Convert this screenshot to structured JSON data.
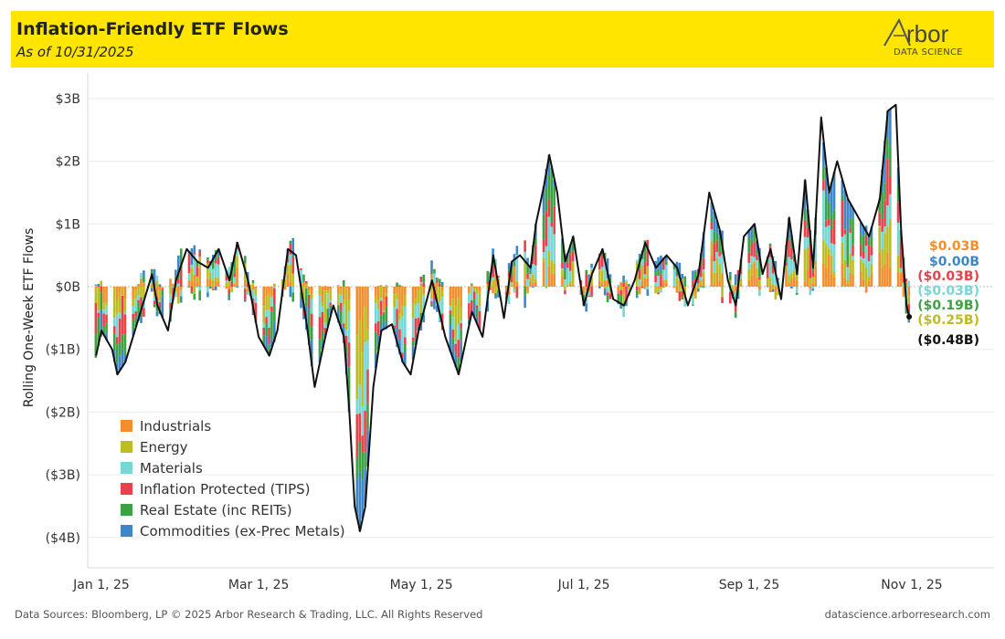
{
  "header": {
    "title": "Inflation-Friendly ETF Flows",
    "subtitle": "As of 10/31/2025",
    "background": "#ffe500"
  },
  "logo": {
    "wordmark": "rbor",
    "tagline": "DATA SCIENCE"
  },
  "footer": {
    "sources": "Data Sources: Bloomberg, LP © 2025 Arbor Research & Trading, LLC. All Rights Reserved",
    "website": "datascience.arborresearch.com"
  },
  "chart_data": {
    "type": "bar",
    "stacked": true,
    "ylabel": "Rolling One-Week ETF Flows",
    "ylim": [
      -4.4,
      3.3
    ],
    "yticks": [
      {
        "value": 3,
        "label": "$3B"
      },
      {
        "value": 2,
        "label": "$2B"
      },
      {
        "value": 1,
        "label": "$1B"
      },
      {
        "value": 0,
        "label": "$0B"
      },
      {
        "value": -1,
        "label": "($1B)"
      },
      {
        "value": -2,
        "label": "($2B)"
      },
      {
        "value": -3,
        "label": "($3B)"
      },
      {
        "value": -4,
        "label": "($4B)"
      }
    ],
    "x_start": "2024-12-30",
    "x_end": "2025-10-31",
    "x_axis_end": "2025-11-24",
    "xticks": [
      {
        "date": "2025-01-01",
        "label": "Jan 1, 25"
      },
      {
        "date": "2025-03-01",
        "label": "Mar 1, 25"
      },
      {
        "date": "2025-05-01",
        "label": "May 1, 25"
      },
      {
        "date": "2025-07-01",
        "label": "Jul 1, 25"
      },
      {
        "date": "2025-09-01",
        "label": "Sep 1, 25"
      },
      {
        "date": "2025-11-01",
        "label": "Nov 1, 25"
      }
    ],
    "legend_position": "bottom-left",
    "series": [
      {
        "name": "Industrials",
        "color": "#f28e2b"
      },
      {
        "name": "Energy",
        "color": "#bcbd22"
      },
      {
        "name": "Materials",
        "color": "#76d7d4"
      },
      {
        "name": "Inflation Protected (TIPS)",
        "color": "#e8414c"
      },
      {
        "name": "Real Estate (inc REITs)",
        "color": "#3ca143"
      },
      {
        "name": "Commodities (ex-Prec Metals)",
        "color": "#3f86c6"
      }
    ],
    "total_line": {
      "color": "#111111",
      "points": [
        [
          "2024-12-30",
          -1.1
        ],
        [
          "2025-01-01",
          -0.7
        ],
        [
          "2025-01-05",
          -1.0
        ],
        [
          "2025-01-07",
          -1.4
        ],
        [
          "2025-01-10",
          -1.2
        ],
        [
          "2025-01-15",
          -0.5
        ],
        [
          "2025-01-20",
          0.2
        ],
        [
          "2025-01-22",
          -0.3
        ],
        [
          "2025-01-26",
          -0.7
        ],
        [
          "2025-01-29",
          0.1
        ],
        [
          "2025-02-02",
          0.6
        ],
        [
          "2025-02-06",
          0.4
        ],
        [
          "2025-02-10",
          0.3
        ],
        [
          "2025-02-14",
          0.6
        ],
        [
          "2025-02-18",
          0.1
        ],
        [
          "2025-02-21",
          0.7
        ],
        [
          "2025-02-25",
          0.1
        ],
        [
          "2025-03-01",
          -0.8
        ],
        [
          "2025-03-05",
          -1.1
        ],
        [
          "2025-03-08",
          -0.7
        ],
        [
          "2025-03-12",
          0.6
        ],
        [
          "2025-03-15",
          0.5
        ],
        [
          "2025-03-19",
          -0.6
        ],
        [
          "2025-03-22",
          -1.6
        ],
        [
          "2025-03-26",
          -0.8
        ],
        [
          "2025-03-29",
          -0.3
        ],
        [
          "2025-04-02",
          -0.8
        ],
        [
          "2025-04-04",
          -2.0
        ],
        [
          "2025-04-06",
          -3.5
        ],
        [
          "2025-04-08",
          -3.9
        ],
        [
          "2025-04-10",
          -3.5
        ],
        [
          "2025-04-13",
          -1.6
        ],
        [
          "2025-04-16",
          -0.7
        ],
        [
          "2025-04-20",
          -0.6
        ],
        [
          "2025-04-24",
          -1.2
        ],
        [
          "2025-04-27",
          -1.4
        ],
        [
          "2025-04-30",
          -0.7
        ],
        [
          "2025-05-05",
          0.1
        ],
        [
          "2025-05-10",
          -0.8
        ],
        [
          "2025-05-15",
          -1.4
        ],
        [
          "2025-05-20",
          -0.4
        ],
        [
          "2025-05-24",
          -0.8
        ],
        [
          "2025-05-28",
          0.5
        ],
        [
          "2025-06-01",
          -0.5
        ],
        [
          "2025-06-04",
          0.4
        ],
        [
          "2025-06-07",
          0.5
        ],
        [
          "2025-06-11",
          0.3
        ],
        [
          "2025-06-13",
          1.0
        ],
        [
          "2025-06-16",
          1.6
        ],
        [
          "2025-06-18",
          2.1
        ],
        [
          "2025-06-21",
          1.5
        ],
        [
          "2025-06-24",
          0.4
        ],
        [
          "2025-06-27",
          0.8
        ],
        [
          "2025-07-01",
          -0.3
        ],
        [
          "2025-07-04",
          0.2
        ],
        [
          "2025-07-08",
          0.6
        ],
        [
          "2025-07-12",
          -0.2
        ],
        [
          "2025-07-16",
          -0.3
        ],
        [
          "2025-07-20",
          0.1
        ],
        [
          "2025-07-24",
          0.7
        ],
        [
          "2025-07-28",
          0.3
        ],
        [
          "2025-08-01",
          0.5
        ],
        [
          "2025-08-05",
          0.3
        ],
        [
          "2025-08-09",
          -0.3
        ],
        [
          "2025-08-13",
          0.2
        ],
        [
          "2025-08-17",
          1.5
        ],
        [
          "2025-08-21",
          0.9
        ],
        [
          "2025-08-24",
          0.1
        ],
        [
          "2025-08-27",
          -0.3
        ],
        [
          "2025-08-30",
          0.8
        ],
        [
          "2025-09-03",
          1.0
        ],
        [
          "2025-09-06",
          0.2
        ],
        [
          "2025-09-09",
          0.6
        ],
        [
          "2025-09-13",
          -0.2
        ],
        [
          "2025-09-16",
          1.1
        ],
        [
          "2025-09-19",
          0.2
        ],
        [
          "2025-09-22",
          1.7
        ],
        [
          "2025-09-25",
          0.3
        ],
        [
          "2025-09-28",
          2.7
        ],
        [
          "2025-10-01",
          1.5
        ],
        [
          "2025-10-04",
          2.0
        ],
        [
          "2025-10-08",
          1.4
        ],
        [
          "2025-10-12",
          1.1
        ],
        [
          "2025-10-16",
          0.8
        ],
        [
          "2025-10-20",
          1.4
        ],
        [
          "2025-10-23",
          2.8
        ],
        [
          "2025-10-26",
          2.9
        ],
        [
          "2025-10-28",
          0.9
        ],
        [
          "2025-10-30",
          -0.3
        ],
        [
          "2025-10-31",
          -0.48
        ]
      ]
    },
    "end_labels": [
      {
        "text": "$0.03B",
        "color": "#f28e2b",
        "offset": 0
      },
      {
        "text": "$0.00B",
        "color": "#3f86c6",
        "offset": 17
      },
      {
        "text": "($0.03B)",
        "color": "#e8414c",
        "offset": 33
      },
      {
        "text": "($0.03B)",
        "color": "#76d7d4",
        "offset": 49
      },
      {
        "text": "($0.19B)",
        "color": "#3ca143",
        "offset": 65
      },
      {
        "text": "($0.25B)",
        "color": "#bcbd22",
        "offset": 81
      },
      {
        "text": "($0.48B)",
        "color": "#111111",
        "offset": 103
      }
    ]
  }
}
